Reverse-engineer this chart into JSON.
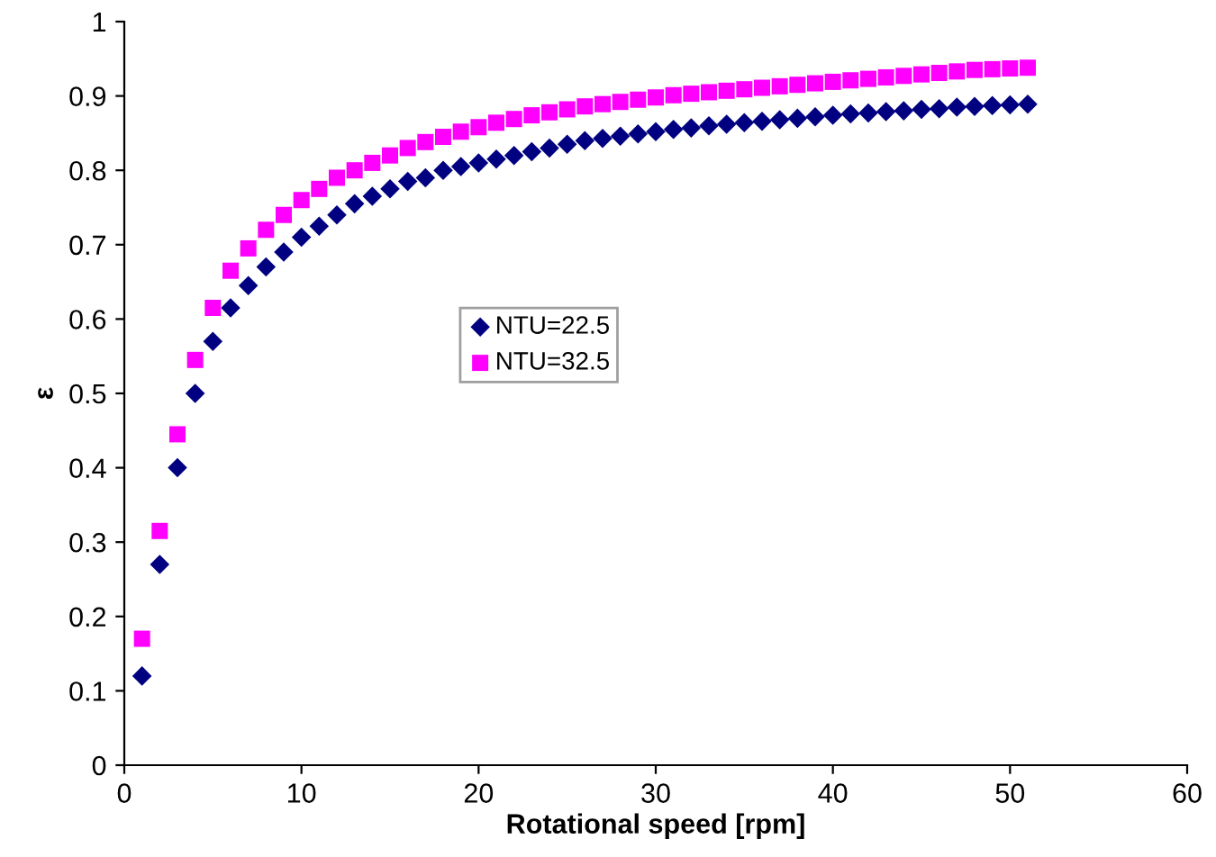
{
  "chart_data": {
    "type": "scatter",
    "xlabel": "Rotational speed [rpm]",
    "ylabel": "ε",
    "x": [
      1,
      2,
      3,
      4,
      5,
      6,
      7,
      8,
      9,
      10,
      11,
      12,
      13,
      14,
      15,
      16,
      17,
      18,
      19,
      20,
      21,
      22,
      23,
      24,
      25,
      26,
      27,
      28,
      29,
      30,
      31,
      32,
      33,
      34,
      35,
      36,
      37,
      38,
      39,
      40,
      41,
      42,
      43,
      44,
      45,
      46,
      47,
      48,
      49,
      50,
      51
    ],
    "series": [
      {
        "name": "NTU=22.5",
        "color": "#000080",
        "marker": "diamond",
        "values": [
          0.12,
          0.27,
          0.4,
          0.5,
          0.57,
          0.615,
          0.645,
          0.67,
          0.69,
          0.71,
          0.725,
          0.74,
          0.755,
          0.765,
          0.775,
          0.785,
          0.79,
          0.8,
          0.805,
          0.81,
          0.815,
          0.82,
          0.825,
          0.83,
          0.835,
          0.84,
          0.843,
          0.846,
          0.849,
          0.852,
          0.855,
          0.857,
          0.86,
          0.862,
          0.864,
          0.866,
          0.868,
          0.87,
          0.872,
          0.874,
          0.876,
          0.877,
          0.879,
          0.88,
          0.882,
          0.883,
          0.885,
          0.886,
          0.887,
          0.888,
          0.889
        ]
      },
      {
        "name": "NTU=32.5",
        "color": "#ff00ff",
        "marker": "square",
        "values": [
          0.17,
          0.315,
          0.445,
          0.545,
          0.615,
          0.665,
          0.695,
          0.72,
          0.74,
          0.76,
          0.775,
          0.79,
          0.8,
          0.81,
          0.82,
          0.83,
          0.838,
          0.845,
          0.852,
          0.858,
          0.864,
          0.869,
          0.874,
          0.878,
          0.882,
          0.886,
          0.889,
          0.892,
          0.895,
          0.898,
          0.901,
          0.903,
          0.905,
          0.907,
          0.909,
          0.911,
          0.913,
          0.915,
          0.917,
          0.919,
          0.921,
          0.923,
          0.925,
          0.927,
          0.929,
          0.931,
          0.933,
          0.935,
          0.936,
          0.937,
          0.938
        ]
      }
    ],
    "xlim": [
      0,
      60
    ],
    "xticks": [
      0,
      10,
      20,
      30,
      40,
      50,
      60
    ],
    "ylim": [
      0,
      1
    ],
    "yticks": [
      0,
      0.1,
      0.2,
      0.3,
      0.4,
      0.5,
      0.6,
      0.7,
      0.8,
      0.9,
      1
    ],
    "grid": false,
    "legend": "center"
  }
}
